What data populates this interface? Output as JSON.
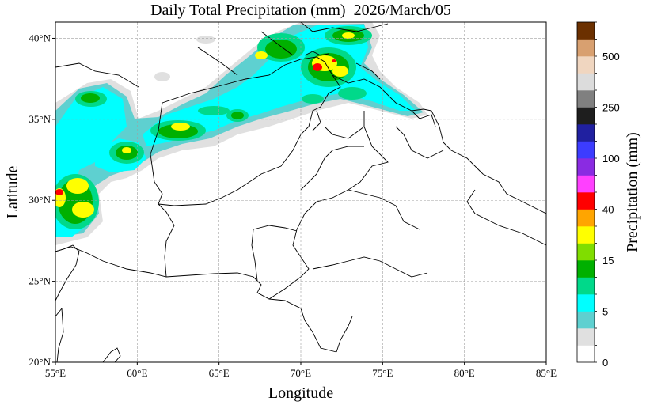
{
  "title": "Daily Total Precipitation (mm)  2026/March/05",
  "map": {
    "xlabel": "Longitude",
    "ylabel": "Latitude",
    "lon_range": [
      55,
      85
    ],
    "lat_range": [
      20,
      41
    ],
    "lon_ticks": [
      "55°E",
      "60°E",
      "65°E",
      "70°E",
      "75°E",
      "80°E",
      "85°E"
    ],
    "lat_ticks": [
      "20°N",
      "25°N",
      "30°N",
      "35°N",
      "40°N"
    ],
    "grid": true
  },
  "colorbar": {
    "label": "Precipitation (mm)",
    "tick_labels": [
      "0",
      "5",
      "15",
      "40",
      "100",
      "250",
      "500"
    ],
    "colors": [
      "#ffffff",
      "#e0e0e0",
      "#5ed0d0",
      "#00ffff",
      "#00d98a",
      "#00b000",
      "#80dd00",
      "#ffff00",
      "#ffa500",
      "#ff0000",
      "#ff40ff",
      "#8a2be2",
      "#3c3cff",
      "#2020a0",
      "#1e1e1e",
      "#808080",
      "#dcdcdc",
      "#f0d6c0",
      "#d8a070",
      "#6b3000"
    ]
  },
  "precipitation_colors": {
    "light": "#e0e0e0",
    "very_light_blue": "#5ed0d0",
    "cyan": "#00ffff",
    "green_light": "#00d98a",
    "green": "#00b000",
    "yellow": "#ffff00",
    "red": "#ff0000"
  }
}
